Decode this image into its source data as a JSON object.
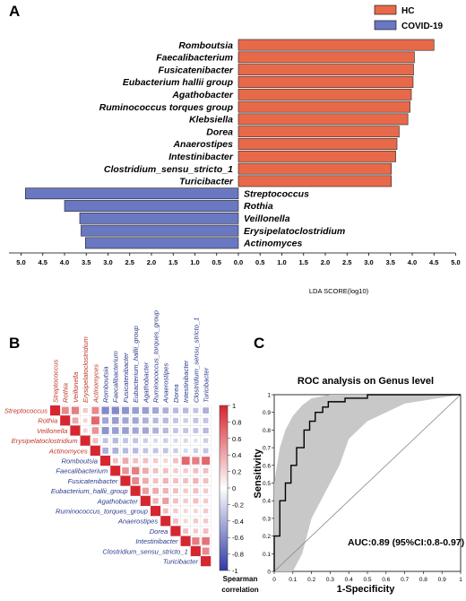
{
  "panels": {
    "a": "A",
    "b": "B",
    "c": "C"
  },
  "chart_data": [
    {
      "type": "bar",
      "orientation": "horizontal",
      "legend": {
        "placement": "top-right",
        "entries": [
          {
            "name": "HC",
            "color": "#e8694a"
          },
          {
            "name": "COVID-19",
            "color": "#6a78c2"
          }
        ]
      },
      "xlabel": "LDA SCORE(log10)",
      "xticks": [
        "5.0",
        "4.5",
        "4.0",
        "3.5",
        "3.0",
        "2.5",
        "2.0",
        "1.5",
        "1.0",
        "0.5",
        "0.0",
        "0.5",
        "1.0",
        "1.5",
        "2.0",
        "2.5",
        "3.0",
        "3.5",
        "4.0",
        "4.5",
        "5.0"
      ],
      "bars": [
        {
          "label": "Romboutsia",
          "group": "HC",
          "value": 4.5
        },
        {
          "label": "Faecalibacterium",
          "group": "HC",
          "value": 4.05
        },
        {
          "label": "Fusicatenibacter",
          "group": "HC",
          "value": 4.03
        },
        {
          "label": "Eubacterium hallii group",
          "group": "HC",
          "value": 4.02
        },
        {
          "label": "Agathobacter",
          "group": "HC",
          "value": 3.98
        },
        {
          "label": "Ruminococcus torques group",
          "group": "HC",
          "value": 3.95
        },
        {
          "label": "Klebsiella",
          "group": "HC",
          "value": 3.9
        },
        {
          "label": "Dorea",
          "group": "HC",
          "value": 3.7
        },
        {
          "label": "Anaerostipes",
          "group": "HC",
          "value": 3.65
        },
        {
          "label": "Intestinibacter",
          "group": "HC",
          "value": 3.62
        },
        {
          "label": "Clostridium_sensu_stricto_1",
          "group": "HC",
          "value": 3.52
        },
        {
          "label": "Turicibacter",
          "group": "HC",
          "value": 3.52
        },
        {
          "label": "Streptococcus",
          "group": "COVID-19",
          "value": 4.9
        },
        {
          "label": "Rothia",
          "group": "COVID-19",
          "value": 4.0
        },
        {
          "label": "Veillonella",
          "group": "COVID-19",
          "value": 3.65
        },
        {
          "label": "Erysipelatoclostridium",
          "group": "COVID-19",
          "value": 3.62
        },
        {
          "label": "Actinomyces",
          "group": "COVID-19",
          "value": 3.52
        }
      ]
    },
    {
      "type": "heatmap",
      "labels": [
        "Streptococcus",
        "Rothia",
        "Veillonella",
        "Erysipelatoclostridium",
        "Actinomyces",
        "Romboutsia",
        "Faecalibacterium",
        "Fusicatenibacter",
        "Eubacterium_hallii_group",
        "Agathobacter",
        "Ruminococcus_torques_group",
        "Anaerostipes",
        "Dorea",
        "Intestinibacter",
        "Clostridium_sensu_stricto_1",
        "Turicibacter"
      ],
      "red_labels": 5,
      "colorbar": {
        "title_line1": "Spearman",
        "title_line2": "correlation",
        "ticks": [
          "1",
          "0.8",
          "0.6",
          "0.4",
          "0.2",
          "0",
          "-0.2",
          "-0.4",
          "-0.6",
          "-0.8",
          "-1"
        ],
        "range": [
          -1,
          1
        ]
      },
      "matrix": [
        [
          1,
          0.55,
          0.6,
          0.25,
          0.55,
          -0.6,
          -0.6,
          -0.55,
          -0.5,
          -0.5,
          -0.45,
          -0.4,
          -0.35,
          -0.35,
          -0.3,
          -0.4
        ],
        [
          0.55,
          1,
          0.4,
          0.2,
          0.7,
          -0.45,
          -0.5,
          -0.45,
          -0.45,
          -0.4,
          -0.35,
          -0.35,
          -0.3,
          -0.25,
          -0.3,
          -0.3
        ],
        [
          0.6,
          0.4,
          1,
          0.2,
          0.5,
          -0.55,
          -0.5,
          -0.5,
          -0.45,
          -0.45,
          -0.4,
          -0.35,
          -0.3,
          -0.3,
          -0.3,
          -0.35
        ],
        [
          0.25,
          0.2,
          0.2,
          1,
          0.3,
          -0.3,
          -0.35,
          -0.3,
          -0.3,
          -0.25,
          -0.2,
          -0.25,
          -0.2,
          -0.2,
          -0.15,
          -0.25
        ],
        [
          0.55,
          0.7,
          0.5,
          0.3,
          1,
          -0.4,
          -0.4,
          -0.35,
          -0.35,
          -0.3,
          -0.3,
          -0.3,
          -0.25,
          -0.2,
          -0.25,
          -0.3
        ],
        [
          -0.6,
          -0.45,
          -0.55,
          -0.3,
          -0.4,
          1,
          0.3,
          0.4,
          0.3,
          0.3,
          0.25,
          0.2,
          0.3,
          0.7,
          0.6,
          0.7
        ],
        [
          -0.6,
          -0.5,
          -0.5,
          -0.35,
          -0.4,
          0.3,
          1,
          0.5,
          0.6,
          0.4,
          0.3,
          0.3,
          0.25,
          0.25,
          0.3,
          0.3
        ],
        [
          -0.55,
          -0.45,
          -0.5,
          -0.3,
          -0.35,
          0.4,
          0.5,
          1,
          0.55,
          0.4,
          0.3,
          0.35,
          0.3,
          0.3,
          0.35,
          0.3
        ],
        [
          -0.5,
          -0.45,
          -0.45,
          -0.3,
          -0.35,
          0.3,
          0.6,
          0.55,
          1,
          0.45,
          0.4,
          0.35,
          0.3,
          0.25,
          0.3,
          0.25
        ],
        [
          -0.5,
          -0.4,
          -0.45,
          -0.25,
          -0.3,
          0.3,
          0.4,
          0.4,
          0.45,
          1,
          0.35,
          0.45,
          0.3,
          0.25,
          0.3,
          0.25
        ],
        [
          -0.45,
          -0.35,
          -0.4,
          -0.2,
          -0.3,
          0.25,
          0.3,
          0.3,
          0.4,
          0.35,
          1,
          0.3,
          0.25,
          0.2,
          0.2,
          0.25
        ],
        [
          -0.4,
          -0.35,
          -0.35,
          -0.25,
          -0.3,
          0.2,
          0.3,
          0.35,
          0.35,
          0.45,
          0.3,
          1,
          0.3,
          0.2,
          0.25,
          0.25
        ],
        [
          -0.35,
          -0.3,
          -0.3,
          -0.2,
          -0.25,
          0.3,
          0.25,
          0.3,
          0.3,
          0.3,
          0.25,
          0.3,
          1,
          0.3,
          0.25,
          0.3
        ],
        [
          -0.35,
          -0.25,
          -0.3,
          -0.2,
          -0.2,
          0.7,
          0.25,
          0.3,
          0.25,
          0.25,
          0.2,
          0.2,
          0.3,
          1,
          0.6,
          0.65
        ],
        [
          -0.3,
          -0.3,
          -0.3,
          -0.15,
          -0.25,
          0.6,
          0.3,
          0.35,
          0.3,
          0.3,
          0.2,
          0.25,
          0.25,
          0.6,
          1,
          0.55
        ],
        [
          -0.4,
          -0.3,
          -0.35,
          -0.25,
          -0.3,
          0.7,
          0.3,
          0.3,
          0.25,
          0.25,
          0.25,
          0.25,
          0.3,
          0.65,
          0.55,
          1
        ]
      ]
    },
    {
      "type": "line",
      "title": "ROC analysis on Genus level",
      "xlabel": "1-Specificity",
      "ylabel": "Sensitivity",
      "xlim": [
        0,
        1
      ],
      "ylim": [
        0,
        1
      ],
      "xticks": [
        "0",
        "0.1",
        "0.2",
        "0.3",
        "0.4",
        "0.5",
        "0.6",
        "0.7",
        "0.8",
        "0.9",
        "1"
      ],
      "yticks": [
        "0",
        "0.1",
        "0.2",
        "0.3",
        "0.4",
        "0.5",
        "0.6",
        "0.7",
        "0.8",
        "0.9",
        "1"
      ],
      "annotation": "AUC:0.89 (95%CI:0.8-0.97)",
      "roc": {
        "x": [
          0,
          0,
          0.03,
          0.03,
          0.06,
          0.06,
          0.09,
          0.09,
          0.12,
          0.12,
          0.16,
          0.16,
          0.19,
          0.19,
          0.22,
          0.22,
          0.26,
          0.26,
          0.29,
          0.29,
          0.38,
          0.38,
          0.5,
          0.5,
          1
        ],
        "y": [
          0,
          0.2,
          0.2,
          0.4,
          0.4,
          0.5,
          0.5,
          0.6,
          0.6,
          0.7,
          0.7,
          0.8,
          0.8,
          0.85,
          0.85,
          0.9,
          0.9,
          0.93,
          0.93,
          0.96,
          0.96,
          0.98,
          0.98,
          1,
          1
        ]
      },
      "ci_upper": {
        "x": [
          0,
          0.03,
          0.06,
          0.1,
          0.15,
          0.2,
          0.3,
          0.4,
          1
        ],
        "y": [
          0.5,
          0.7,
          0.8,
          0.88,
          0.94,
          0.98,
          1,
          1,
          1
        ]
      },
      "ci_lower": {
        "x": [
          0,
          0.1,
          0.15,
          0.2,
          0.3,
          0.35,
          0.4,
          0.5,
          0.6,
          0.7,
          1
        ],
        "y": [
          0,
          0,
          0.1,
          0.3,
          0.5,
          0.6,
          0.75,
          0.85,
          0.9,
          0.95,
          1
        ]
      },
      "colors": {
        "ci": "#c8c8c8",
        "curve": "#000000",
        "diagonal": "#888888"
      }
    }
  ]
}
